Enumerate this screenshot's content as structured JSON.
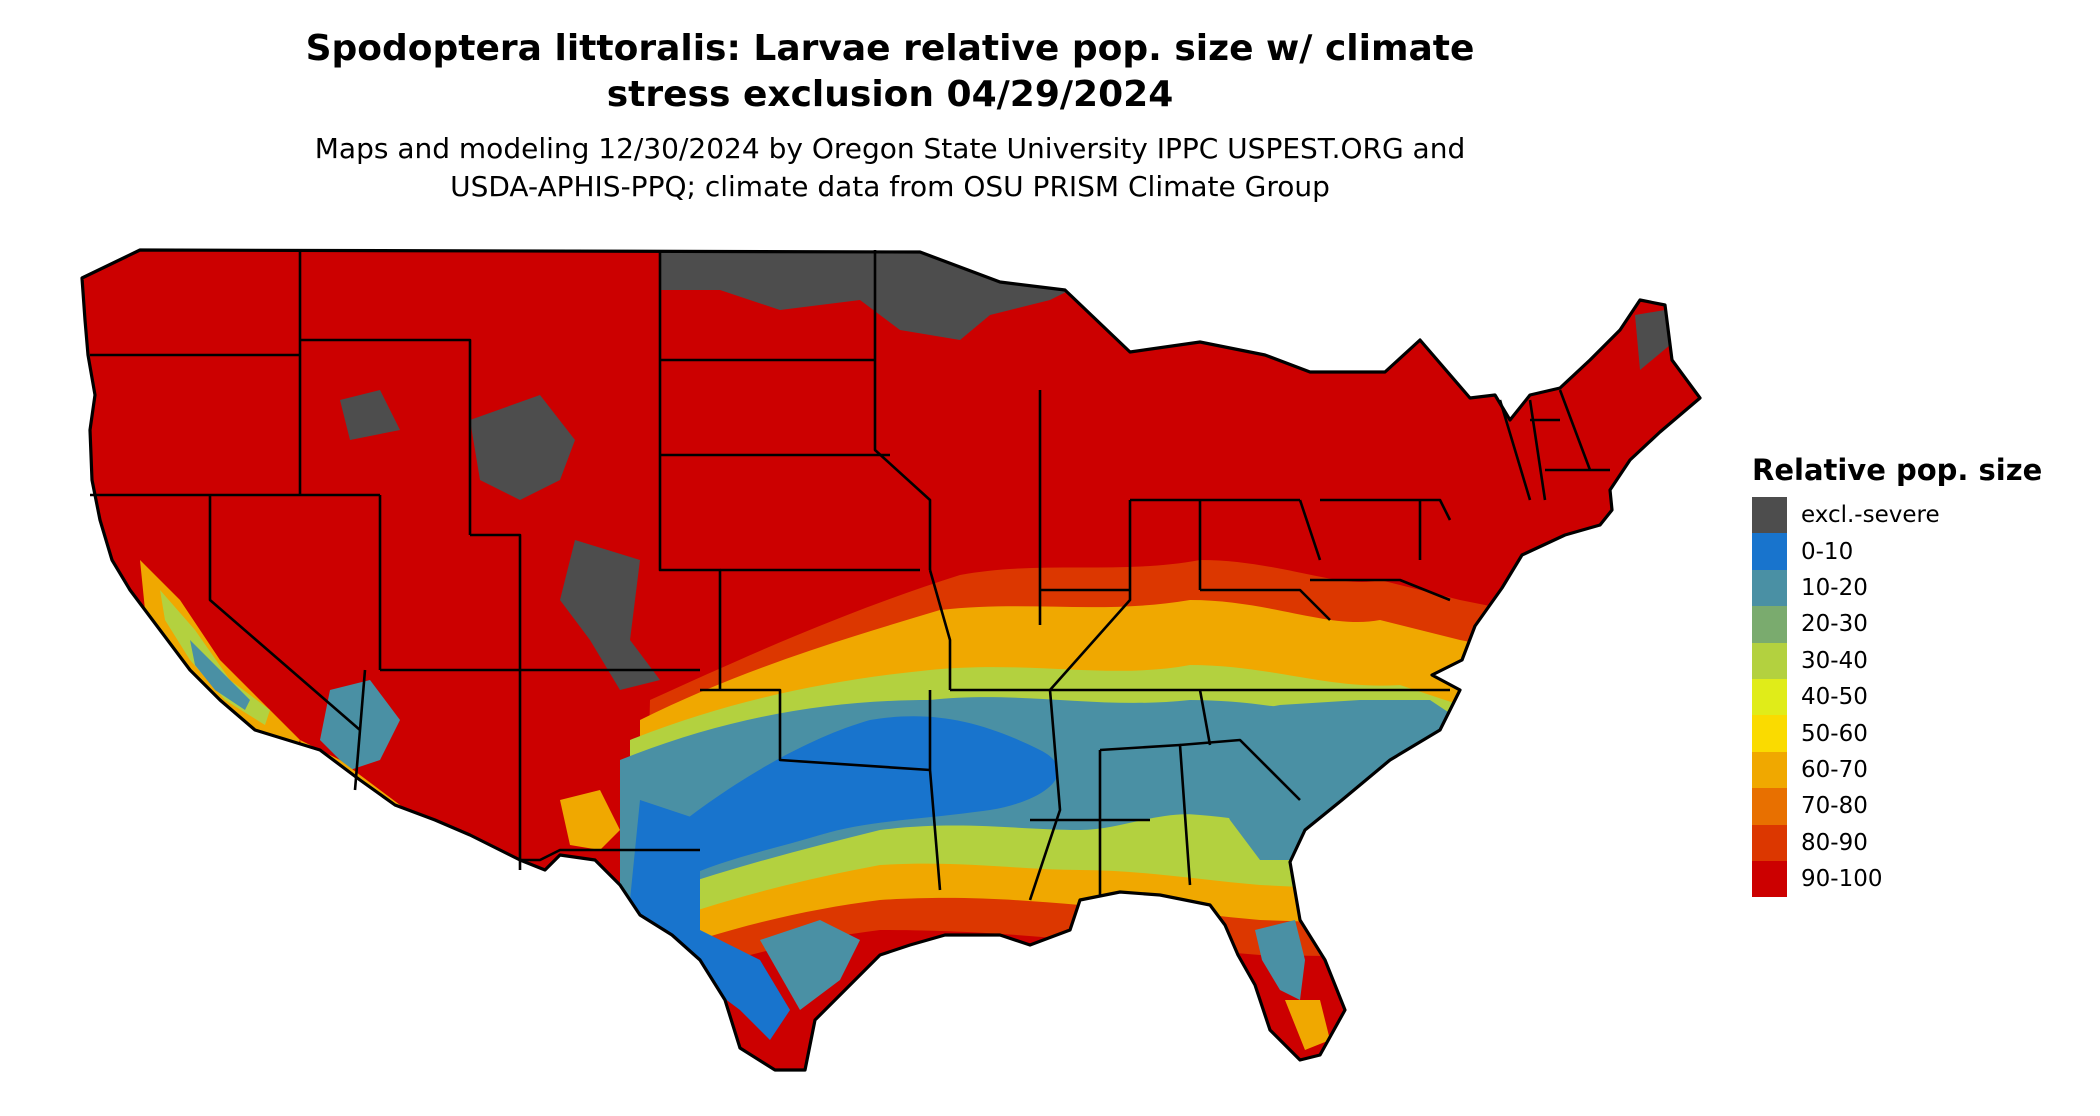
{
  "map": {
    "title_line1": "Spodoptera littoralis: Larvae relative pop. size w/ climate",
    "title_line2": "stress exclusion 04/29/2024",
    "subtitle_line1": "Maps and modeling 12/30/2024 by Oregon State University IPPC USPEST.ORG and",
    "subtitle_line2": "USDA-APHIS-PPQ; climate data from OSU PRISM Climate Group"
  },
  "legend": {
    "title": "Relative pop. size",
    "items": [
      {
        "label": "excl.-severe",
        "color": "#4d4d4d"
      },
      {
        "label": "0-10",
        "color": "#1874cd"
      },
      {
        "label": "10-20",
        "color": "#4a90a4"
      },
      {
        "label": "20-30",
        "color": "#7aab6e"
      },
      {
        "label": "30-40",
        "color": "#b3d13f"
      },
      {
        "label": "40-50",
        "color": "#e0ec19"
      },
      {
        "label": "50-60",
        "color": "#fadb00"
      },
      {
        "label": "60-70",
        "color": "#f0a800"
      },
      {
        "label": "70-80",
        "color": "#e87000"
      },
      {
        "label": "80-90",
        "color": "#dc3700"
      },
      {
        "label": "90-100",
        "color": "#cc0000"
      }
    ]
  }
}
